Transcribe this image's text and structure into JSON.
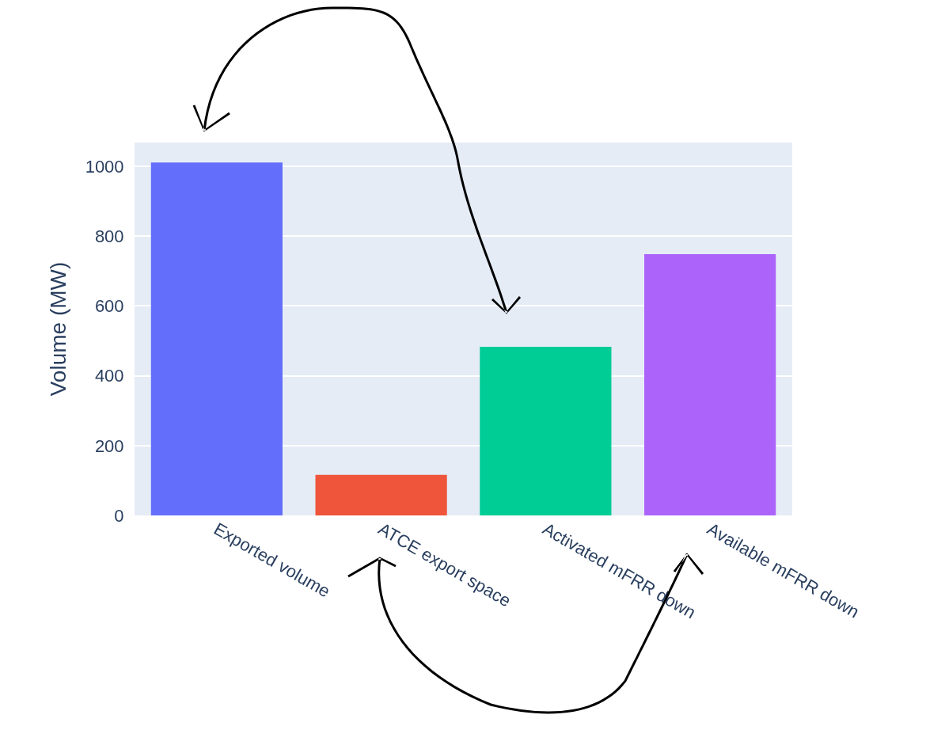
{
  "chart_data": {
    "type": "bar",
    "ylabel": "Volume (MW)",
    "categories": [
      "Exported volume",
      "ATCE export space",
      "Activated mFRR down",
      "Available mFRR down"
    ],
    "values": [
      1011,
      116,
      483,
      748
    ],
    "colors": [
      "#636efa",
      "#ef553b",
      "#00cc96",
      "#ab63fa"
    ],
    "ylim": [
      0,
      1068
    ],
    "yticks": [
      0,
      200,
      400,
      600,
      800,
      1000
    ],
    "grid": "y"
  }
}
